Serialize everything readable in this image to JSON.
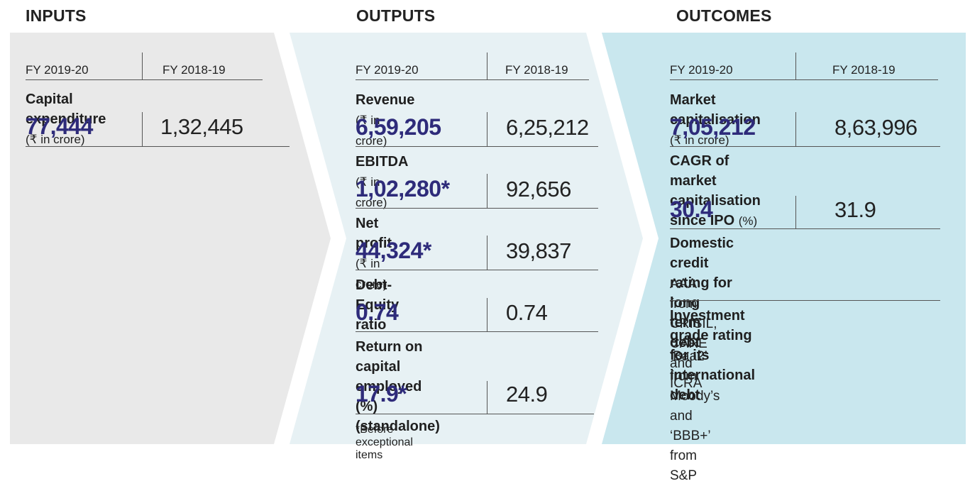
{
  "colors": {
    "inputs_bg": "#e9e9e9",
    "outputs_bg": "#e7f1f4",
    "outcomes_bg": "#c9e7ee",
    "value_highlight": "#2e2b7a"
  },
  "rupee_symbol": "₹",
  "inputs": {
    "heading": "INPUTS",
    "fy_current": "FY 2019-20",
    "fy_previous": "FY 2018-19",
    "metrics": [
      {
        "label": "Capital expenditure",
        "unit": " in crore)",
        "current": "77,444",
        "previous": "1,32,445"
      }
    ]
  },
  "outputs": {
    "heading": "OUTPUTS",
    "fy_current": "FY 2019-20",
    "fy_previous": "FY 2018-19",
    "metrics": [
      {
        "label": "Revenue",
        "unit": " in crore)",
        "current": "6,59,205",
        "previous": "6,25,212"
      },
      {
        "label": "EBITDA",
        "unit": " in crore)",
        "current": "1,02,280*",
        "previous": "92,656"
      },
      {
        "label": "Net profit",
        "unit": " in crore)",
        "current": "44,324*",
        "previous": "39,837"
      },
      {
        "label": "Debt-Equity ratio",
        "current": "0.74",
        "previous": "0.74"
      },
      {
        "label_line1": "Return on capital",
        "label_line2": "employed (%) (standalone)",
        "current": "17.9*",
        "previous": "24.9"
      }
    ],
    "footnote": "*Before exceptional items"
  },
  "outcomes": {
    "heading": "OUTCOMES",
    "fy_current": "FY 2019-20",
    "fy_previous": "FY 2018-19",
    "metrics": [
      {
        "label": "Market capitalisation",
        "unit": " in crore)",
        "current": "7,05,212",
        "previous": "8,63,996"
      },
      {
        "label_line1": "CAGR of market capitalisation",
        "label_line2": "since IPO",
        "unit": "(%)",
        "current": "30.4",
        "previous": "31.9"
      }
    ],
    "ratings": [
      {
        "title_line1": "Domestic credit rating for",
        "title_line2": "long term debt",
        "desc_line1": "AAA from CRISIL, CARE and ICRA"
      },
      {
        "title_line1": "Investment grade rating for its",
        "title_line2": "international debt",
        "desc_line1": "‘Baa2’ from Moody’s and ‘BBB+’",
        "desc_line2": "from S&P"
      }
    ]
  }
}
